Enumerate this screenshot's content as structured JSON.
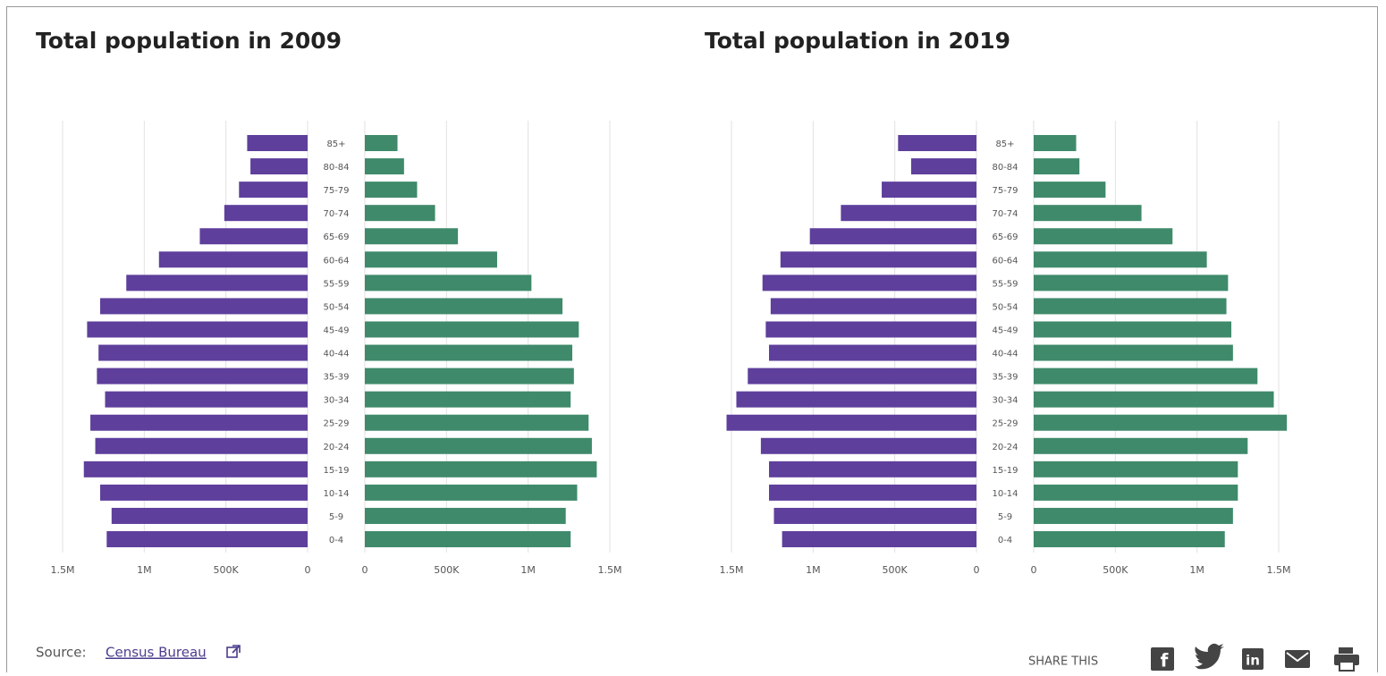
{
  "chart_data": [
    {
      "type": "pyramid",
      "title": "Total population in 2009",
      "categories": [
        "85+",
        "80-84",
        "75-79",
        "70-74",
        "65-69",
        "60-64",
        "55-59",
        "50-54",
        "45-49",
        "40-44",
        "35-39",
        "30-34",
        "25-29",
        "20-24",
        "15-19",
        "10-14",
        "5-9",
        "0-4"
      ],
      "series": [
        {
          "color": "#5e3f9c",
          "values": [
            370000,
            350000,
            420000,
            510000,
            660000,
            910000,
            1110000,
            1270000,
            1350000,
            1280000,
            1290000,
            1240000,
            1330000,
            1300000,
            1370000,
            1270000,
            1200000,
            1230000
          ]
        },
        {
          "color": "#3f8a6b",
          "values": [
            200000,
            240000,
            320000,
            430000,
            570000,
            810000,
            1020000,
            1210000,
            1310000,
            1270000,
            1280000,
            1260000,
            1370000,
            1390000,
            1420000,
            1300000,
            1230000,
            1260000
          ]
        }
      ],
      "xlim": [
        0,
        1500000
      ],
      "xticks": [
        0,
        {
          "value": 500000,
          "label": "500K"
        },
        {
          "value": 1000000,
          "label": "1M"
        },
        {
          "value": 1500000,
          "label": "1.5M"
        }
      ],
      "grid": true
    },
    {
      "type": "pyramid",
      "title": "Total population in 2019",
      "categories": [
        "85+",
        "80-84",
        "75-79",
        "70-74",
        "65-69",
        "60-64",
        "55-59",
        "50-54",
        "45-49",
        "40-44",
        "35-39",
        "30-34",
        "25-29",
        "20-24",
        "15-19",
        "10-14",
        "5-9",
        "0-4"
      ],
      "series": [
        {
          "color": "#5e3f9c",
          "values": [
            480000,
            400000,
            580000,
            830000,
            1020000,
            1200000,
            1310000,
            1260000,
            1290000,
            1270000,
            1400000,
            1470000,
            1530000,
            1320000,
            1270000,
            1270000,
            1240000,
            1190000
          ]
        },
        {
          "color": "#3f8a6b",
          "values": [
            260000,
            280000,
            440000,
            660000,
            850000,
            1060000,
            1190000,
            1180000,
            1210000,
            1220000,
            1370000,
            1470000,
            1550000,
            1310000,
            1250000,
            1250000,
            1220000,
            1170000
          ]
        }
      ],
      "xlim": [
        0,
        1500000
      ],
      "xticks": [
        0,
        {
          "value": 500000,
          "label": "500K"
        },
        {
          "value": 1000000,
          "label": "1M"
        },
        {
          "value": 1500000,
          "label": "1.5M"
        }
      ],
      "grid": true
    }
  ],
  "footer": {
    "source_label": "Source:",
    "source_link": "Census Bureau",
    "share_label": "SHARE THIS"
  }
}
